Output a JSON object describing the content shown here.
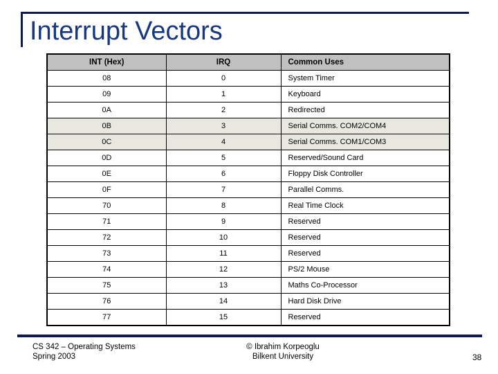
{
  "slide": {
    "title": "Interrupt Vectors"
  },
  "colors": {
    "accent_navy": "#0e1a4f",
    "title_blue": "#17377e",
    "header_gray": "#c0c0c0",
    "shaded_row": "#e8e8e1"
  },
  "table": {
    "headers": [
      "INT (Hex)",
      "IRQ",
      "Common Uses"
    ],
    "rows": [
      {
        "int": "08",
        "irq": "0",
        "use": "System Timer",
        "shaded": false
      },
      {
        "int": "09",
        "irq": "1",
        "use": "Keyboard",
        "shaded": false
      },
      {
        "int": "0A",
        "irq": "2",
        "use": "Redirected",
        "shaded": false
      },
      {
        "int": "0B",
        "irq": "3",
        "use": "Serial Comms. COM2/COM4",
        "shaded": true
      },
      {
        "int": "0C",
        "irq": "4",
        "use": "Serial Comms. COM1/COM3",
        "shaded": true
      },
      {
        "int": "0D",
        "irq": "5",
        "use": "Reserved/Sound Card",
        "shaded": false
      },
      {
        "int": "0E",
        "irq": "6",
        "use": "Floppy Disk Controller",
        "shaded": false
      },
      {
        "int": "0F",
        "irq": "7",
        "use": "Parallel Comms.",
        "shaded": false
      },
      {
        "int": "70",
        "irq": "8",
        "use": "Real Time Clock",
        "shaded": false
      },
      {
        "int": "71",
        "irq": "9",
        "use": "Reserved",
        "shaded": false
      },
      {
        "int": "72",
        "irq": "10",
        "use": "Reserved",
        "shaded": false
      },
      {
        "int": "73",
        "irq": "11",
        "use": "Reserved",
        "shaded": false
      },
      {
        "int": "74",
        "irq": "12",
        "use": "PS/2 Mouse",
        "shaded": false
      },
      {
        "int": "75",
        "irq": "13",
        "use": "Maths Co-Processor",
        "shaded": false
      },
      {
        "int": "76",
        "irq": "14",
        "use": "Hard Disk Drive",
        "shaded": false
      },
      {
        "int": "77",
        "irq": "15",
        "use": "Reserved",
        "shaded": false
      }
    ]
  },
  "footer": {
    "left_line1": "CS 342 – Operating Systems",
    "left_line2": "Spring 2003",
    "center_line1": "© Ibrahim Korpeoglu",
    "center_line2": "Bilkent University",
    "page_number": "38"
  }
}
